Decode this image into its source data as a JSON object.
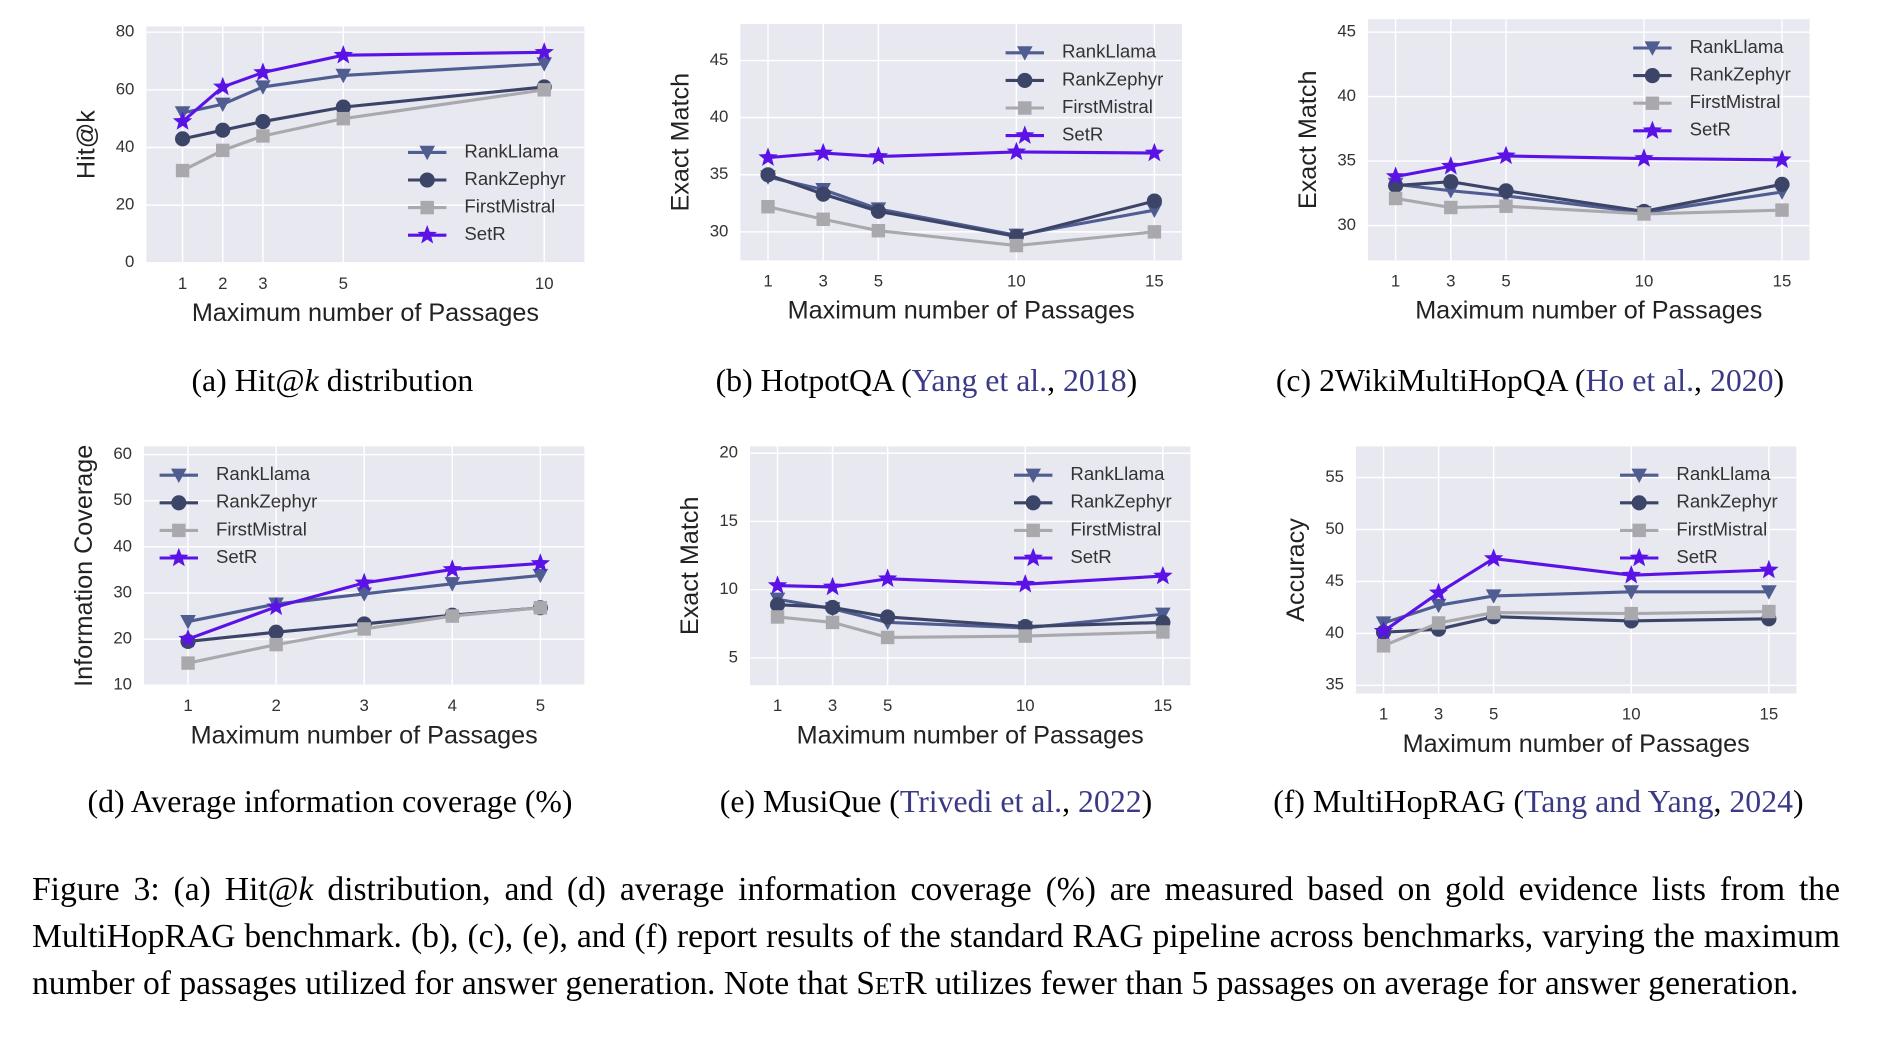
{
  "chart_data": [
    {
      "type": "line",
      "xlabel": "Maximum number of Passages",
      "ylabel": "Hit@k",
      "x": [
        1,
        2,
        3,
        5,
        10
      ],
      "xlim": [
        0.1,
        11
      ],
      "xticks": [
        1,
        2,
        3,
        5,
        10
      ],
      "ylim": [
        0,
        82
      ],
      "yticks": [
        0,
        20,
        40,
        60,
        80
      ],
      "grid": true,
      "legend": "lower right",
      "series": [
        {
          "name": "RankLlama",
          "color": "#4f5d91",
          "marker": "triangle-down",
          "values": [
            52,
            55,
            61,
            65,
            69
          ]
        },
        {
          "name": "RankZephyr",
          "color": "#3c4468",
          "marker": "circle",
          "values": [
            43,
            46,
            49,
            54,
            61
          ]
        },
        {
          "name": "FirstMistral",
          "color": "#a9a9ad",
          "marker": "square",
          "values": [
            32,
            39,
            44,
            50,
            60
          ]
        },
        {
          "name": "SetR",
          "color": "#5b12e6",
          "marker": "star",
          "values": [
            49,
            61,
            66,
            72,
            73
          ]
        }
      ],
      "caption": [
        {
          "text": "(a) Hit@"
        },
        {
          "text": "k",
          "style": "italic"
        },
        {
          "text": " distribution"
        }
      ]
    },
    {
      "type": "line",
      "xlabel": "Maximum number of Passages",
      "ylabel": "Exact Match",
      "x": [
        1,
        3,
        5,
        10,
        15
      ],
      "xlim": [
        0,
        16
      ],
      "xticks": [
        1,
        3,
        5,
        10,
        15
      ],
      "ylim": [
        27.5,
        48.2
      ],
      "yticks": [
        30,
        35,
        40,
        45
      ],
      "grid": true,
      "legend": "upper right",
      "series": [
        {
          "name": "RankLlama",
          "color": "#4f5d91",
          "marker": "triangle-down",
          "values": [
            34.8,
            33.7,
            32.0,
            29.7,
            31.9
          ]
        },
        {
          "name": "RankZephyr",
          "color": "#3c4468",
          "marker": "circle",
          "values": [
            35.0,
            33.3,
            31.8,
            29.6,
            32.7
          ]
        },
        {
          "name": "FirstMistral",
          "color": "#a9a9ad",
          "marker": "square",
          "values": [
            32.2,
            31.1,
            30.1,
            28.8,
            30.0
          ]
        },
        {
          "name": "SetR",
          "color": "#5b12e6",
          "marker": "star",
          "values": [
            36.5,
            36.9,
            36.6,
            37.0,
            36.9
          ]
        }
      ],
      "caption": [
        {
          "text": "(b) HotpotQA ("
        },
        {
          "text": "Yang et al.",
          "link": true
        },
        {
          "text": ", "
        },
        {
          "text": "2018",
          "link": true
        },
        {
          "text": ")"
        }
      ]
    },
    {
      "type": "line",
      "xlabel": "Maximum number of Passages",
      "ylabel": "Exact Match",
      "x": [
        1,
        3,
        5,
        10,
        15
      ],
      "xlim": [
        0,
        16
      ],
      "xticks": [
        1,
        3,
        5,
        10,
        15
      ],
      "ylim": [
        27.3,
        46
      ],
      "yticks": [
        30,
        35,
        40,
        45
      ],
      "grid": true,
      "legend": "upper right",
      "series": [
        {
          "name": "RankLlama",
          "color": "#4f5d91",
          "marker": "triangle-down",
          "values": [
            33.2,
            32.7,
            32.3,
            31.0,
            32.6
          ]
        },
        {
          "name": "RankZephyr",
          "color": "#3c4468",
          "marker": "circle",
          "values": [
            33.1,
            33.4,
            32.7,
            31.1,
            33.2
          ]
        },
        {
          "name": "FirstMistral",
          "color": "#a9a9ad",
          "marker": "square",
          "values": [
            32.1,
            31.4,
            31.5,
            30.9,
            31.2
          ]
        },
        {
          "name": "SetR",
          "color": "#5b12e6",
          "marker": "star",
          "values": [
            33.8,
            34.6,
            35.4,
            35.2,
            35.1
          ]
        }
      ],
      "caption": [
        {
          "text": "(c) 2WikiMultiHopQA ("
        },
        {
          "text": "Ho et al.",
          "link": true
        },
        {
          "text": ", "
        },
        {
          "text": "2020",
          "link": true
        },
        {
          "text": ")"
        }
      ]
    },
    {
      "type": "line",
      "xlabel": "Maximum number of Passages",
      "ylabel": "Information Coverage",
      "x": [
        1,
        2,
        3,
        4,
        5
      ],
      "xlim": [
        0.5,
        5.5
      ],
      "xticks": [
        1,
        2,
        3,
        4,
        5
      ],
      "ylim": [
        10,
        61.8
      ],
      "yticks": [
        10,
        20,
        30,
        40,
        50,
        60
      ],
      "grid": true,
      "legend": "upper left",
      "series": [
        {
          "name": "RankLlama",
          "color": "#4f5d91",
          "marker": "triangle-down",
          "values": [
            23.8,
            27.6,
            29.8,
            32.0,
            33.8
          ]
        },
        {
          "name": "RankZephyr",
          "color": "#3c4468",
          "marker": "circle",
          "values": [
            19.5,
            21.5,
            23.3,
            25.2,
            26.8
          ]
        },
        {
          "name": "FirstMistral",
          "color": "#a9a9ad",
          "marker": "square",
          "values": [
            14.8,
            18.8,
            22.2,
            25.0,
            26.8
          ]
        },
        {
          "name": "SetR",
          "color": "#5b12e6",
          "marker": "star",
          "values": [
            20.0,
            27.0,
            32.2,
            35.1,
            36.4
          ]
        }
      ],
      "caption": [
        {
          "text": "(d) Average information coverage (%)"
        }
      ]
    },
    {
      "type": "line",
      "xlabel": "Maximum number of Passages",
      "ylabel": "Exact Match",
      "x": [
        1,
        3,
        5,
        10,
        15
      ],
      "xlim": [
        0,
        16
      ],
      "xticks": [
        1,
        3,
        5,
        10,
        15
      ],
      "ylim": [
        3,
        20.5
      ],
      "yticks": [
        5,
        10,
        15,
        20
      ],
      "grid": true,
      "legend": "upper right",
      "series": [
        {
          "name": "RankLlama",
          "color": "#4f5d91",
          "marker": "triangle-down",
          "values": [
            9.3,
            8.6,
            7.6,
            7.2,
            8.2
          ]
        },
        {
          "name": "RankZephyr",
          "color": "#3c4468",
          "marker": "circle",
          "values": [
            8.9,
            8.7,
            8.0,
            7.3,
            7.6
          ]
        },
        {
          "name": "FirstMistral",
          "color": "#a9a9ad",
          "marker": "square",
          "values": [
            8.0,
            7.6,
            6.5,
            6.6,
            6.9
          ]
        },
        {
          "name": "SetR",
          "color": "#5b12e6",
          "marker": "star",
          "values": [
            10.3,
            10.2,
            10.8,
            10.4,
            11.0
          ]
        }
      ],
      "caption": [
        {
          "text": "(e) MusiQue ("
        },
        {
          "text": "Trivedi et al.",
          "link": true
        },
        {
          "text": ", "
        },
        {
          "text": "2022",
          "link": true
        },
        {
          "text": ")"
        }
      ]
    },
    {
      "type": "line",
      "xlabel": "Maximum number of Passages",
      "ylabel": "Accuracy",
      "x": [
        1,
        3,
        5,
        10,
        15
      ],
      "xlim": [
        0,
        16
      ],
      "xticks": [
        1,
        3,
        5,
        10,
        15
      ],
      "ylim": [
        34.2,
        58
      ],
      "yticks": [
        35,
        40,
        45,
        50,
        55
      ],
      "grid": true,
      "legend": "upper right",
      "series": [
        {
          "name": "RankLlama",
          "color": "#4f5d91",
          "marker": "triangle-down",
          "values": [
            41.0,
            42.7,
            43.6,
            44.0,
            44.0
          ]
        },
        {
          "name": "RankZephyr",
          "color": "#3c4468",
          "marker": "circle",
          "values": [
            40.1,
            40.4,
            41.6,
            41.2,
            41.4
          ]
        },
        {
          "name": "FirstMistral",
          "color": "#a9a9ad",
          "marker": "square",
          "values": [
            38.8,
            41.0,
            42.0,
            41.9,
            42.1
          ]
        },
        {
          "name": "SetR",
          "color": "#5b12e6",
          "marker": "star",
          "values": [
            40.2,
            43.9,
            47.2,
            45.6,
            46.1
          ]
        }
      ],
      "caption": [
        {
          "text": "(f) MultiHopRAG ("
        },
        {
          "text": "Tang and Yang",
          "link": true
        },
        {
          "text": ", "
        },
        {
          "text": "2024",
          "link": true
        },
        {
          "text": ")"
        }
      ]
    }
  ],
  "figure_caption": [
    {
      "text": "Figure 3: (a) Hit@"
    },
    {
      "text": "k",
      "style": "italic"
    },
    {
      "text": " distribution, and (d) average information coverage (%) are measured based on gold evidence lists from the MultiHopRAG benchmark. (b), (c), (e), and (f) report results of the standard RAG pipeline across benchmarks, varying the maximum number of passages utilized for answer generation. Note that "
    },
    {
      "text": "SetR",
      "style": "small-caps"
    },
    {
      "text": " utilizes fewer than 5 passages on average for answer generation."
    }
  ]
}
